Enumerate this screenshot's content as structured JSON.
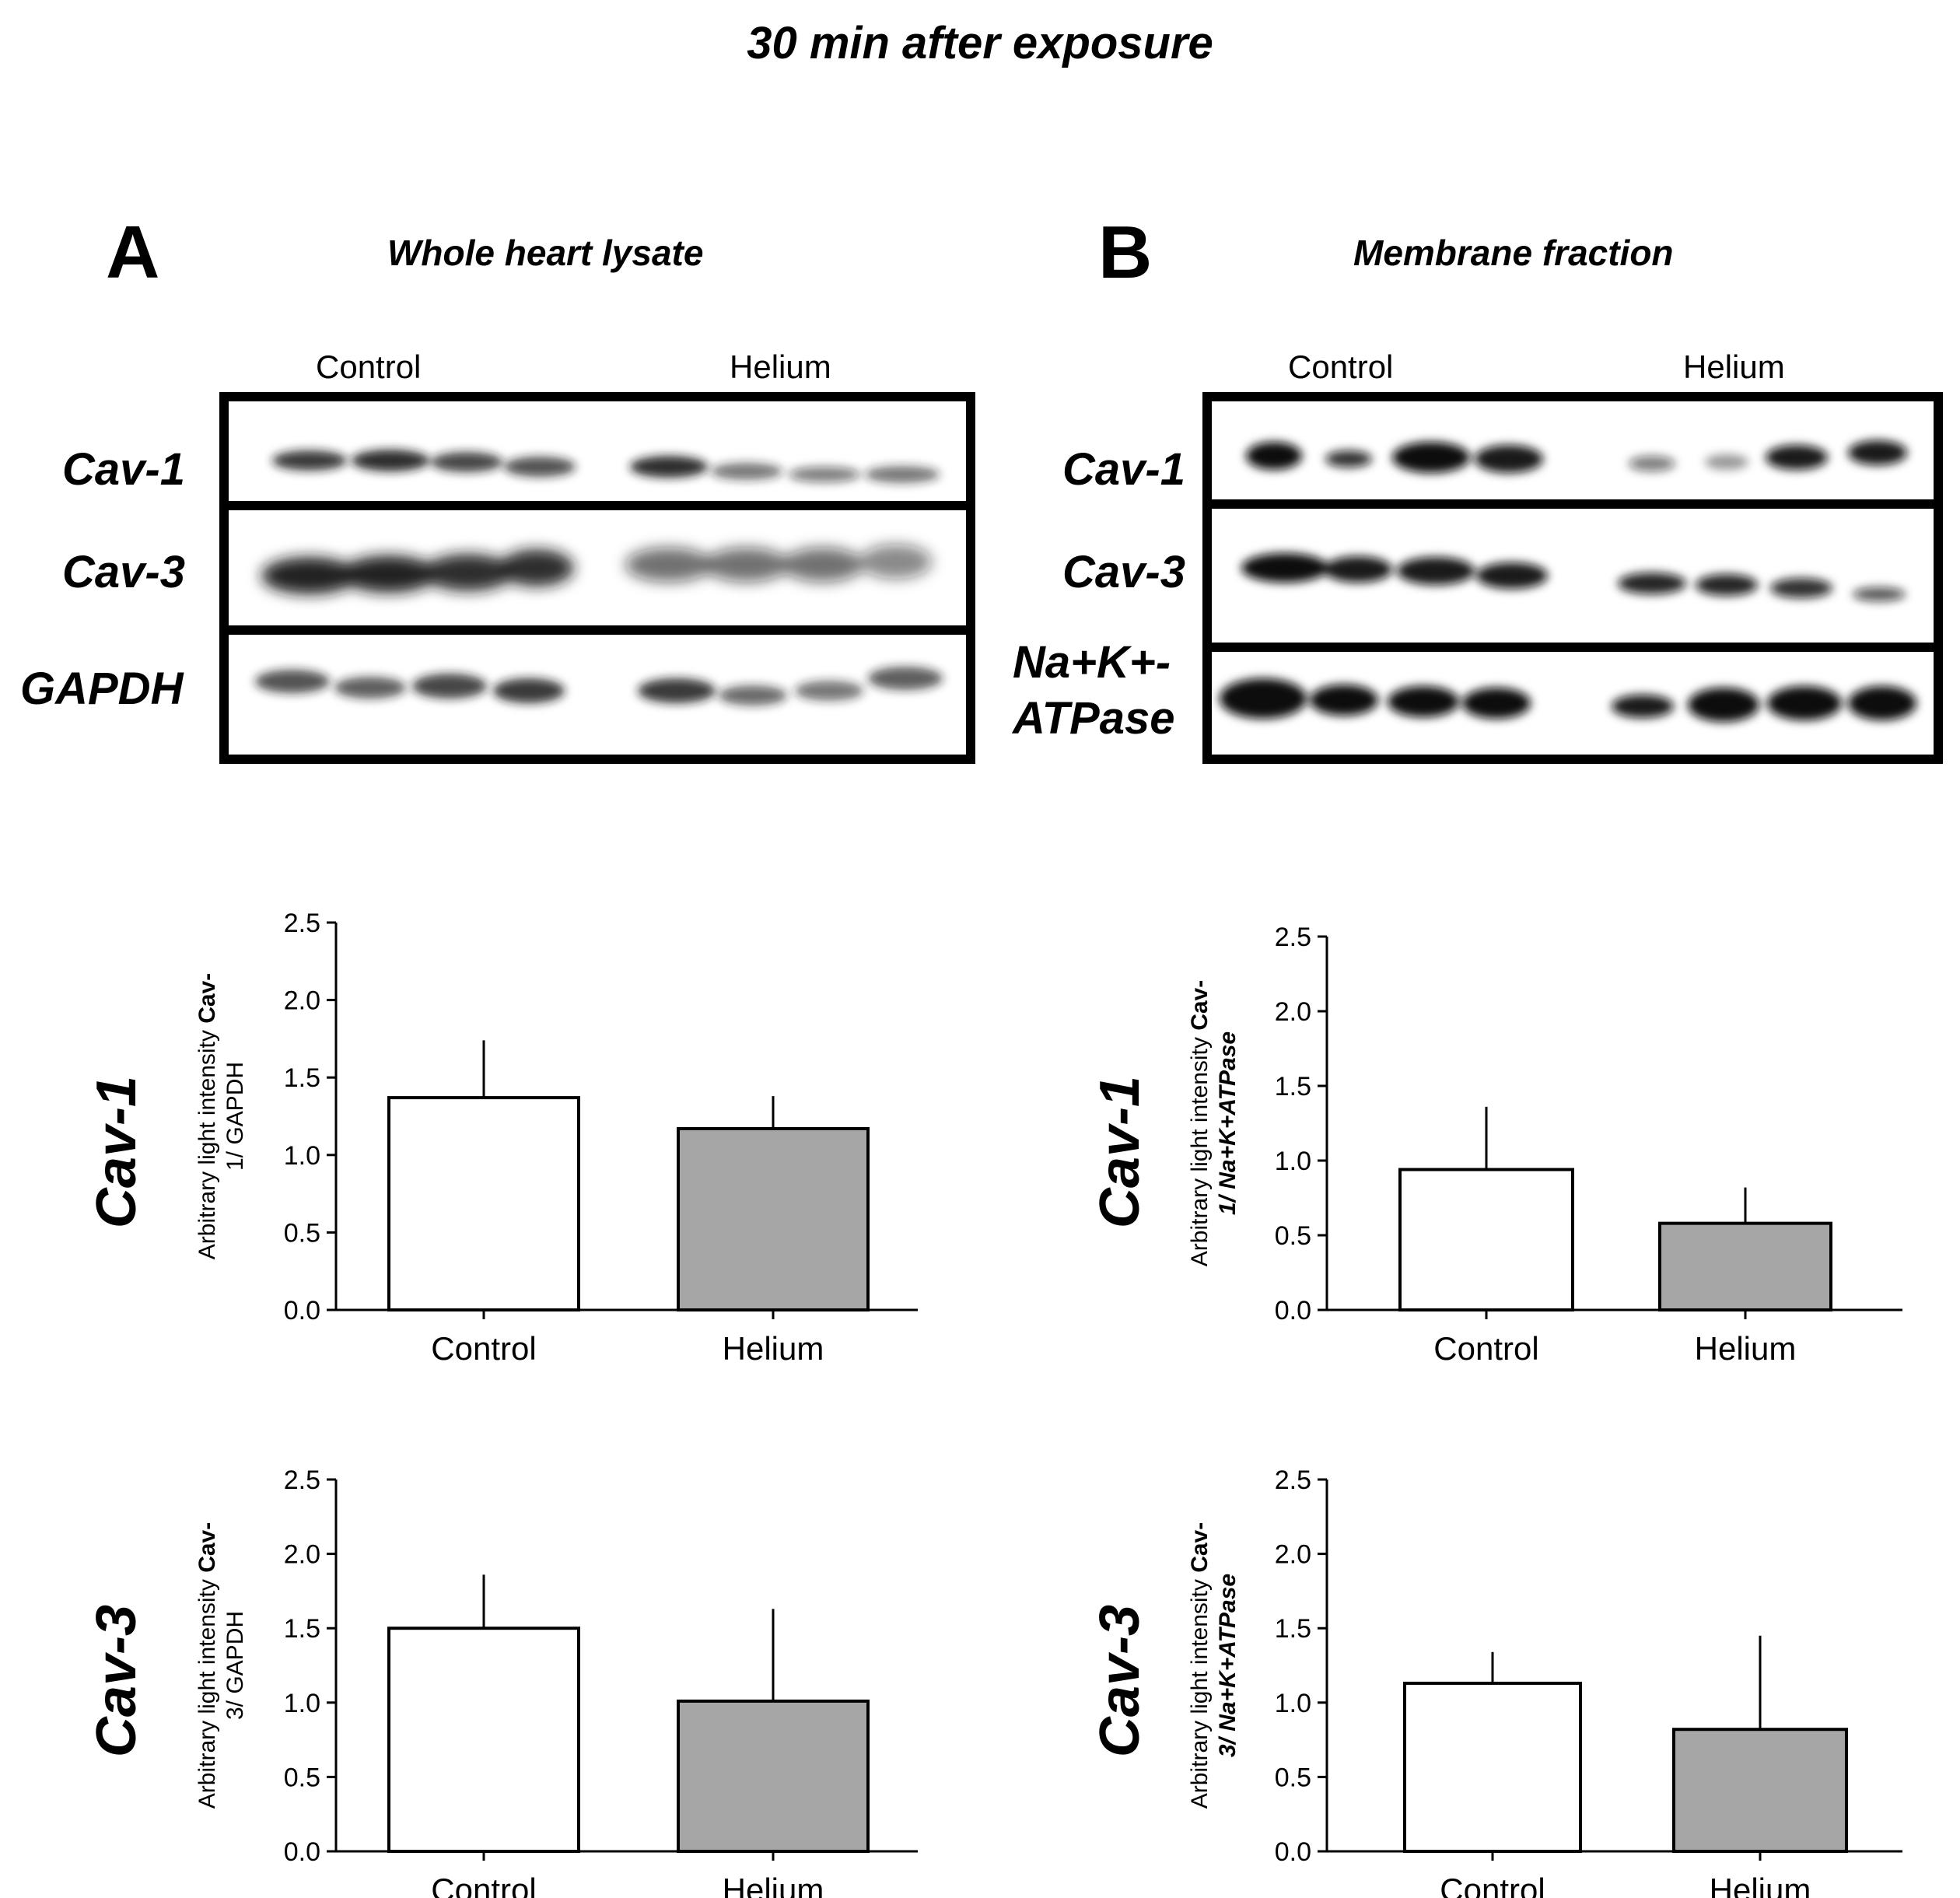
{
  "title": "30 min after exposure",
  "panels": {
    "a": {
      "letter": "A",
      "subtitle": "Whole heart lysate",
      "lane_control": "Control",
      "lane_helium": "Helium",
      "blots": [
        "Cav-1",
        "Cav-3",
        "GAPDH"
      ]
    },
    "b": {
      "letter": "B",
      "subtitle": "Membrane fraction",
      "lane_control": "Control",
      "lane_helium": "Helium",
      "blots": [
        "Cav-1",
        "Cav-3",
        "Na+K+-",
        "ATPase"
      ]
    }
  },
  "row_titles": [
    "Cav-1",
    "Cav-3"
  ],
  "colors": {
    "control_bar": "#ffffff",
    "helium_bar": "#a6a6a6",
    "axis": "#000000"
  },
  "chart_data": [
    {
      "type": "bar",
      "panel": "A",
      "row": "Cav-1",
      "categories": [
        "Control",
        "Helium"
      ],
      "values": [
        1.37,
        1.17
      ],
      "errors": [
        0.37,
        0.21
      ],
      "ylabel_plain": "Arbitrary light intensity ",
      "ylabel_bold": "Cav-",
      "ylabel_line2": "1/ GAPDH",
      "ylim": [
        0,
        2.5
      ],
      "yticks": [
        "0.0",
        "0.5",
        "1.0",
        "1.5",
        "2.0",
        "2.5"
      ]
    },
    {
      "type": "bar",
      "panel": "B",
      "row": "Cav-1",
      "categories": [
        "Control",
        "Helium"
      ],
      "values": [
        0.94,
        0.58
      ],
      "errors": [
        0.42,
        0.24
      ],
      "ylabel_plain": "Arbitrary light intensity ",
      "ylabel_bold": "Cav-",
      "ylabel_line2": "1/ Na+K+ATPase",
      "ylim": [
        0,
        2.5
      ],
      "yticks": [
        "0.0",
        "0.5",
        "1.0",
        "1.5",
        "2.0",
        "2.5"
      ]
    },
    {
      "type": "bar",
      "panel": "A",
      "row": "Cav-3",
      "categories": [
        "Control",
        "Helium"
      ],
      "values": [
        1.5,
        1.01
      ],
      "errors": [
        0.36,
        0.62
      ],
      "ylabel_plain": "Arbitrary light intensity ",
      "ylabel_bold": "Cav-",
      "ylabel_line2": "3/ GAPDH",
      "ylim": [
        0,
        2.5
      ],
      "yticks": [
        "0.0",
        "0.5",
        "1.0",
        "1.5",
        "2.0",
        "2.5"
      ]
    },
    {
      "type": "bar",
      "panel": "B",
      "row": "Cav-3",
      "categories": [
        "Control",
        "Helium"
      ],
      "values": [
        1.13,
        0.82
      ],
      "errors": [
        0.21,
        0.63
      ],
      "ylabel_plain": "Arbitrary light intensity ",
      "ylabel_bold": "Cav-",
      "ylabel_line2": "3/ Na+K+ATPase",
      "ylim": [
        0,
        2.5
      ],
      "yticks": [
        "0.0",
        "0.5",
        "1.0",
        "1.5",
        "2.0",
        "2.5"
      ]
    }
  ]
}
